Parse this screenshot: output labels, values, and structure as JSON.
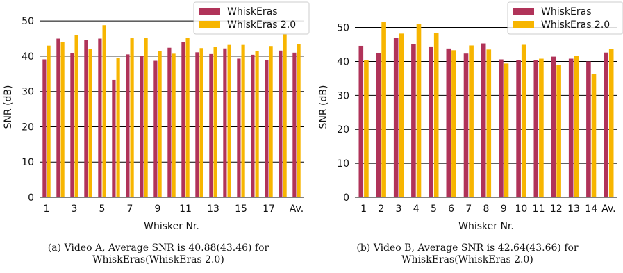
{
  "colors": {
    "series1": "#b03359",
    "series2": "#f7b500",
    "grid": "#000000"
  },
  "captions": {
    "a": "(a) Video A, Average SNR is 40.88(43.46) for WhiskEras(WhiskEras 2.0)",
    "b": "(b) Video B, Average SNR is 42.64(43.66) for WhiskEras(WhiskEras 2.0)"
  },
  "chart_data": [
    {
      "type": "bar",
      "xlabel": "Whisker Nr.",
      "ylabel": "SNR (dB)",
      "ylim": [
        0,
        52
      ],
      "yticks": [
        0,
        10,
        20,
        30,
        40,
        50
      ],
      "grid": "horizontal",
      "legend_position": "top-right",
      "categories": [
        "1",
        "2",
        "3",
        "4",
        "5",
        "6",
        "7",
        "8",
        "9",
        "10",
        "11",
        "12",
        "13",
        "14",
        "15",
        "16",
        "17",
        "18",
        "Av."
      ],
      "tick_labels": [
        "1",
        "",
        "3",
        "",
        "5",
        "",
        "7",
        "",
        "9",
        "",
        "11",
        "",
        "13",
        "",
        "15",
        "",
        "17",
        "",
        "Av."
      ],
      "series": [
        {
          "name": "WhiskEras",
          "values": [
            39.1,
            45.0,
            40.8,
            44.6,
            45.0,
            33.3,
            40.5,
            40.1,
            38.7,
            42.4,
            44.0,
            41.1,
            40.6,
            42.2,
            39.3,
            40.4,
            38.9,
            41.6,
            41.0
          ]
        },
        {
          "name": "WhiskEras 2.0",
          "values": [
            43.0,
            44.0,
            46.0,
            42.0,
            48.8,
            39.5,
            45.1,
            45.3,
            41.4,
            40.7,
            45.2,
            42.3,
            42.6,
            43.2,
            43.2,
            41.4,
            42.9,
            46.2,
            43.5
          ]
        }
      ]
    },
    {
      "type": "bar",
      "xlabel": "Whisker Nr.",
      "ylabel": "SNR (dB)",
      "ylim": [
        0,
        54
      ],
      "yticks": [
        0,
        10,
        20,
        30,
        40,
        50
      ],
      "grid": "horizontal",
      "legend_position": "top-right",
      "categories": [
        "1",
        "2",
        "3",
        "4",
        "5",
        "6",
        "7",
        "8",
        "9",
        "10",
        "11",
        "12",
        "13",
        "14",
        "Av."
      ],
      "tick_labels": [
        "1",
        "2",
        "3",
        "4",
        "5",
        "6",
        "7",
        "8",
        "9",
        "10",
        "11",
        "12",
        "13",
        "14",
        "Av."
      ],
      "series": [
        {
          "name": "WhiskEras",
          "values": [
            44.6,
            42.5,
            47.0,
            45.1,
            44.4,
            43.8,
            42.3,
            45.3,
            40.6,
            40.3,
            40.5,
            41.4,
            40.8,
            40.0,
            42.6
          ]
        },
        {
          "name": "WhiskEras 2.0",
          "values": [
            40.5,
            51.6,
            48.2,
            51.0,
            48.4,
            43.3,
            44.7,
            43.5,
            39.4,
            44.9,
            40.8,
            39.0,
            41.7,
            36.4,
            43.7
          ]
        }
      ]
    }
  ]
}
